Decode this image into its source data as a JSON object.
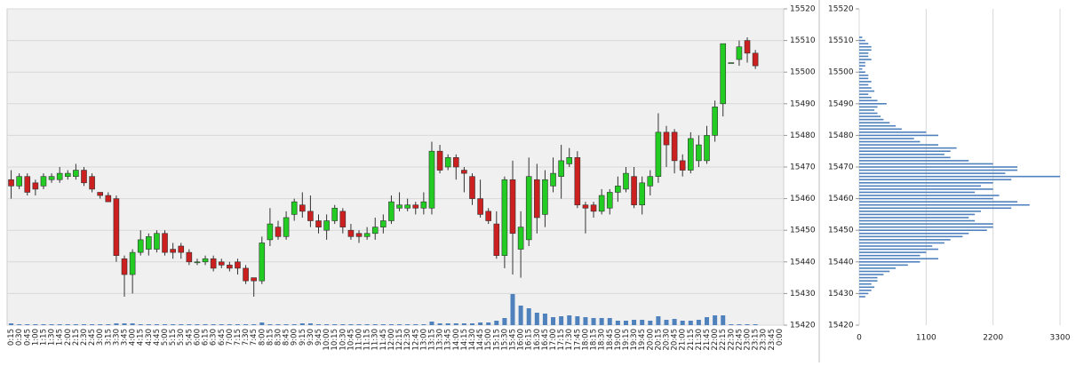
{
  "chart_data": [
    {
      "type": "candlestick",
      "categories": [
        "0:15",
        "0:30",
        "0:45",
        "1:00",
        "1:15",
        "1:30",
        "1:45",
        "2:00",
        "2:15",
        "2:30",
        "2:45",
        "3:00",
        "3:15",
        "3:30",
        "3:45",
        "4:00",
        "4:15",
        "4:30",
        "4:45",
        "5:00",
        "5:15",
        "5:30",
        "5:45",
        "6:00",
        "6:15",
        "6:30",
        "6:45",
        "7:00",
        "7:15",
        "7:30",
        "7:45",
        "8:00",
        "8:15",
        "8:30",
        "8:45",
        "9:00",
        "9:15",
        "9:30",
        "9:45",
        "10:00",
        "10:15",
        "10:30",
        "10:45",
        "11:00",
        "11:15",
        "11:30",
        "11:45",
        "12:00",
        "12:15",
        "12:30",
        "12:45",
        "13:00",
        "13:15",
        "13:30",
        "13:45",
        "14:00",
        "14:15",
        "14:30",
        "14:45",
        "15:00",
        "15:15",
        "15:30",
        "15:45",
        "16:00",
        "16:15",
        "16:30",
        "16:45",
        "17:00",
        "17:15",
        "17:30",
        "17:45",
        "18:00",
        "18:15",
        "18:30",
        "18:45",
        "19:00",
        "19:15",
        "19:30",
        "19:45",
        "20:00",
        "20:15",
        "20:30",
        "20:45",
        "21:00",
        "21:15",
        "21:30",
        "21:45",
        "22:00",
        "22:15",
        "22:30",
        "22:45",
        "23:00",
        "23:15",
        "23:30",
        "23:45",
        "0:00"
      ],
      "open": [
        15466,
        15464,
        15467,
        15465,
        15464,
        15466,
        15466,
        15467,
        15467,
        15469,
        15467,
        15462,
        15461,
        15460,
        15441,
        15436,
        15443,
        15444,
        15444,
        15449,
        15444,
        15445,
        15443,
        15440,
        15440,
        15441,
        15440,
        15439,
        15440,
        15438,
        15435,
        15434,
        15447,
        15451,
        15448,
        15455,
        15458,
        15456,
        15453,
        15450,
        15453,
        15456,
        15450,
        15449,
        15448,
        15449,
        15451,
        15453,
        15457,
        15457,
        15458,
        15457,
        15457,
        15475,
        15470,
        15473,
        15469,
        15467,
        15460,
        15456,
        15452,
        15442,
        15466,
        15444,
        15447,
        15466,
        15455,
        15464,
        15467,
        15471,
        15473,
        15458,
        15458,
        15456,
        15457,
        15462,
        15463,
        15467,
        15458,
        15464,
        15467,
        15481,
        15481,
        15472,
        15469,
        15472,
        15472,
        15480,
        15490,
        15503,
        15504,
        15510,
        15506,
        null,
        null,
        null
      ],
      "high": [
        15469,
        15468,
        15468,
        15466,
        15468,
        15468,
        15470,
        15469,
        15471,
        15470,
        15468,
        15462,
        15462,
        15461,
        15442,
        15444,
        15450,
        15449,
        15450,
        15450,
        15446,
        15446,
        15444,
        15441,
        15442,
        15442,
        15441,
        15440,
        15441,
        15439,
        15435,
        15448,
        15457,
        15453,
        15456,
        15460,
        15462,
        15461,
        15455,
        15455,
        15458,
        15457,
        15452,
        15450,
        15451,
        15454,
        15455,
        15461,
        15462,
        15460,
        15459,
        15462,
        15478,
        15477,
        15474,
        15474,
        15470,
        15468,
        15466,
        15457,
        15456,
        15467,
        15472,
        15456,
        15473,
        15471,
        15469,
        15473,
        15477,
        15476,
        15475,
        15459,
        15459,
        15463,
        15463,
        15467,
        15470,
        15470,
        15467,
        15469,
        15487,
        15483,
        15482,
        15474,
        15481,
        15480,
        15483,
        15491,
        15509,
        15503,
        15510,
        15511,
        15507,
        null,
        null,
        null
      ],
      "low": [
        15460,
        15463,
        15461,
        15461,
        15463,
        15465,
        15465,
        15466,
        15466,
        15464,
        15462,
        15460,
        15459,
        15440,
        15429,
        15430,
        15442,
        15442,
        15443,
        15442,
        15441,
        15441,
        15439,
        15439,
        15439,
        15437,
        15438,
        15437,
        15436,
        15433,
        15429,
        15433,
        15445,
        15447,
        15447,
        15453,
        15454,
        15451,
        15449,
        15447,
        15452,
        15449,
        15447,
        15446,
        15447,
        15447,
        15449,
        15452,
        15456,
        15456,
        15455,
        15455,
        15455,
        15468,
        15469,
        15466,
        15462,
        15458,
        15454,
        15452,
        15441,
        15438,
        15436,
        15435,
        15445,
        15449,
        15451,
        15462,
        15460,
        15470,
        15457,
        15449,
        15454,
        15455,
        15455,
        15459,
        15462,
        15457,
        15455,
        15461,
        15465,
        15470,
        15468,
        15467,
        15468,
        15470,
        15471,
        15478,
        15486,
        15503,
        15502,
        15503,
        15501,
        null,
        null,
        null
      ],
      "close": [
        15464,
        15467,
        15462,
        15463,
        15467,
        15467,
        15468,
        15468,
        15469,
        15465,
        15463,
        15461,
        15459,
        15442,
        15436,
        15443,
        15447,
        15448,
        15449,
        15443,
        15443,
        15443,
        15440,
        15440,
        15441,
        15438,
        15439,
        15438,
        15438,
        15434,
        15434,
        15446,
        15452,
        15448,
        15454,
        15459,
        15456,
        15453,
        15451,
        15453,
        15457,
        15451,
        15448,
        15448,
        15449,
        15451,
        15453,
        15459,
        15458,
        15458,
        15457,
        15459,
        15475,
        15469,
        15473,
        15470,
        15468,
        15460,
        15455,
        15453,
        15442,
        15466,
        15449,
        15451,
        15467,
        15454,
        15466,
        15468,
        15472,
        15473,
        15458,
        15457,
        15456,
        15461,
        15462,
        15464,
        15468,
        15458,
        15465,
        15467,
        15481,
        15477,
        15472,
        15469,
        15479,
        15477,
        15480,
        15489,
        15509,
        15503,
        15508,
        15506,
        15502,
        null,
        null,
        null
      ],
      "volume": [
        2,
        1,
        1,
        1,
        1,
        1,
        1,
        1,
        1,
        1,
        1,
        1,
        1,
        2,
        2,
        2,
        1,
        1,
        1,
        1,
        1,
        1,
        1,
        1,
        1,
        1,
        1,
        1,
        1,
        1,
        1,
        3,
        1,
        1,
        1,
        1,
        2,
        2,
        1,
        1,
        1,
        1,
        1,
        1,
        1,
        1,
        1,
        1,
        1,
        1,
        1,
        1,
        4,
        2,
        2,
        2,
        2,
        2,
        3,
        3,
        5,
        8,
        35,
        22,
        19,
        14,
        13,
        9,
        10,
        11,
        10,
        9,
        8,
        8,
        8,
        5,
        5,
        6,
        6,
        5,
        10,
        6,
        7,
        5,
        5,
        6,
        9,
        11,
        11,
        1,
        1,
        1,
        1,
        null,
        null,
        null
      ],
      "up_color": "#22cc22",
      "down_color": "#cc1f1f",
      "volume_color": "#4f81bd",
      "ylim": [
        15420,
        15520
      ],
      "yticks": [
        15420,
        15430,
        15440,
        15450,
        15460,
        15470,
        15480,
        15490,
        15500,
        15510,
        15520
      ],
      "grid": true
    },
    {
      "type": "bar",
      "orientation": "horizontal",
      "levels": [
        15429,
        15430,
        15431,
        15432,
        15433,
        15434,
        15435,
        15436,
        15437,
        15438,
        15439,
        15440,
        15441,
        15442,
        15443,
        15444,
        15445,
        15446,
        15447,
        15448,
        15449,
        15450,
        15451,
        15452,
        15453,
        15454,
        15455,
        15456,
        15457,
        15458,
        15459,
        15460,
        15461,
        15462,
        15463,
        15464,
        15465,
        15466,
        15467,
        15468,
        15469,
        15470,
        15471,
        15472,
        15473,
        15474,
        15475,
        15476,
        15477,
        15478,
        15479,
        15480,
        15481,
        15482,
        15483,
        15484,
        15485,
        15486,
        15487,
        15488,
        15489,
        15490,
        15491,
        15492,
        15493,
        15494,
        15495,
        15496,
        15497,
        15498,
        15499,
        15500,
        15501,
        15502,
        15503,
        15504,
        15505,
        15506,
        15507,
        15508,
        15509,
        15510,
        15511
      ],
      "values": [
        100,
        150,
        200,
        250,
        200,
        300,
        300,
        400,
        500,
        600,
        800,
        1000,
        1300,
        1000,
        1100,
        1300,
        1200,
        1400,
        1500,
        1700,
        1800,
        2100,
        2200,
        2200,
        1900,
        1800,
        1900,
        2000,
        2500,
        2800,
        2600,
        2200,
        2300,
        1900,
        2200,
        2000,
        2200,
        2500,
        3300,
        2400,
        2600,
        2600,
        2200,
        1800,
        1500,
        1400,
        1500,
        1600,
        1300,
        1000,
        900,
        1300,
        1100,
        700,
        600,
        500,
        400,
        350,
        300,
        250,
        300,
        450,
        300,
        200,
        150,
        250,
        200,
        150,
        200,
        150,
        150,
        100,
        50,
        100,
        100,
        200,
        150,
        150,
        200,
        200,
        150,
        100,
        50
      ],
      "color": "#4f81bd",
      "xlim": [
        0,
        3300
      ],
      "xticks": [
        0,
        1100,
        2200,
        3300
      ],
      "ylim": [
        15420,
        15520
      ],
      "yticks": [
        15420,
        15430,
        15440,
        15450,
        15460,
        15470,
        15480,
        15490,
        15500,
        15510,
        15520
      ],
      "grid": true
    }
  ]
}
